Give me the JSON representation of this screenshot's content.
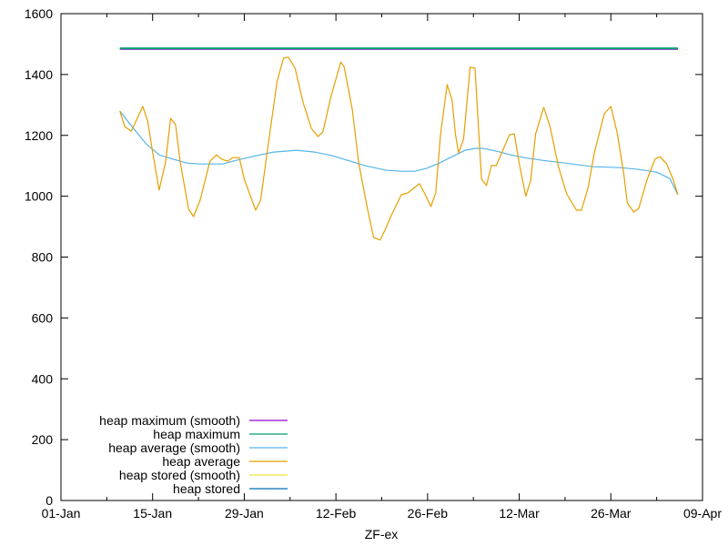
{
  "chart_data": {
    "type": "line",
    "title": "",
    "xlabel": "ZF-ex",
    "ylabel": "",
    "x_type": "date",
    "xlim": [
      "Jan 01",
      "Apr 09"
    ],
    "ylim": [
      0,
      1600
    ],
    "x_ticks": [
      "01-Jan",
      "15-Jan",
      "29-Jan",
      "12-Feb",
      "26-Feb",
      "12-Mar",
      "26-Mar",
      "09-Apr"
    ],
    "x_tick_dates": [
      "Jan 01",
      "Jan 15",
      "Jan 29",
      "Feb 12",
      "Feb 26",
      "Mar 12",
      "Mar 26",
      "Apr 09"
    ],
    "y_ticks": [
      0,
      200,
      400,
      600,
      800,
      1000,
      1200,
      1400,
      1600
    ],
    "grid": false,
    "legend_placement": "bottom-left",
    "series": [
      {
        "name": "heap maximum (smooth)",
        "color": "#9400d3",
        "points": [
          [
            "Jan 10 00:00",
            1484
          ],
          [
            "Apr 05 06:00",
            1484
          ]
        ]
      },
      {
        "name": "heap maximum",
        "color": "#009e73",
        "points": [
          [
            "Jan 10 00:00",
            1486
          ],
          [
            "Apr 05 06:00",
            1486
          ]
        ]
      },
      {
        "name": "heap average (smooth)",
        "color": "#56b4e9",
        "points": [
          [
            "Jan 10 00:00",
            1280
          ],
          [
            "Jan 11 18:00",
            1232
          ],
          [
            "Jan 14 00:00",
            1172
          ],
          [
            "Jan 16 00:00",
            1136
          ],
          [
            "Jan 18 06:00",
            1121
          ],
          [
            "Jan 20 06:00",
            1109
          ],
          [
            "Jan 22 06:00",
            1106
          ],
          [
            "Jan 25 18:00",
            1106
          ],
          [
            "Jan 27 18:00",
            1118
          ],
          [
            "Jan 30 18:00",
            1133
          ],
          [
            "Feb 02 12:00",
            1145
          ],
          [
            "Feb 06 00:00",
            1151
          ],
          [
            "Feb 08 18:00",
            1145
          ],
          [
            "Feb 11 12:00",
            1133
          ],
          [
            "Feb 14 06:00",
            1115
          ],
          [
            "Feb 16 12:00",
            1100
          ],
          [
            "Feb 19 18:00",
            1085
          ],
          [
            "Feb 22 00:00",
            1082
          ],
          [
            "Feb 24 00:00",
            1082
          ],
          [
            "Feb 25 18:00",
            1091
          ],
          [
            "Feb 27 12:00",
            1106
          ],
          [
            "Mar 01 18:00",
            1130
          ],
          [
            "Mar 03 18:00",
            1151
          ],
          [
            "Mar 05 06:00",
            1157
          ],
          [
            "Mar 06 12:00",
            1157
          ],
          [
            "Mar 08 12:00",
            1148
          ],
          [
            "Mar 10 18:00",
            1136
          ],
          [
            "Mar 12 18:00",
            1127
          ],
          [
            "Mar 15 12:00",
            1118
          ],
          [
            "Mar 19 00:00",
            1109
          ],
          [
            "Mar 23 06:00",
            1097
          ],
          [
            "Mar 27 12:00",
            1094
          ],
          [
            "Mar 30 06:00",
            1088
          ],
          [
            "Apr 02 00:00",
            1079
          ],
          [
            "Apr 04 00:00",
            1058
          ],
          [
            "Apr 05 06:00",
            1005
          ]
        ]
      },
      {
        "name": "heap average",
        "color": "#e69f00",
        "points": [
          [
            "Jan 10 00:00",
            1280
          ],
          [
            "Jan 10 18:00",
            1229
          ],
          [
            "Jan 11 18:00",
            1214
          ],
          [
            "Jan 13 12:00",
            1295
          ],
          [
            "Jan 14 06:00",
            1247
          ],
          [
            "Jan 15 00:00",
            1145
          ],
          [
            "Jan 16 00:00",
            1020
          ],
          [
            "Jan 17 00:00",
            1115
          ],
          [
            "Jan 17 18:00",
            1256
          ],
          [
            "Jan 18 12:00",
            1235
          ],
          [
            "Jan 19 06:00",
            1107
          ],
          [
            "Jan 20 12:00",
            957
          ],
          [
            "Jan 21 06:00",
            933
          ],
          [
            "Jan 22 06:00",
            987
          ],
          [
            "Jan 23 18:00",
            1115
          ],
          [
            "Jan 24 18:00",
            1136
          ],
          [
            "Jan 25 12:00",
            1122
          ],
          [
            "Jan 26 12:00",
            1115
          ],
          [
            "Jan 27 06:00",
            1127
          ],
          [
            "Jan 28 06:00",
            1127
          ],
          [
            "Jan 29 00:00",
            1056
          ],
          [
            "Jan 30 18:00",
            954
          ],
          [
            "Jan 31 12:00",
            987
          ],
          [
            "Feb 01 12:00",
            1145
          ],
          [
            "Feb 03 00:00",
            1376
          ],
          [
            "Feb 04 00:00",
            1454
          ],
          [
            "Feb 04 18:00",
            1457
          ],
          [
            "Feb 05 18:00",
            1421
          ],
          [
            "Feb 07 00:00",
            1307
          ],
          [
            "Feb 08 06:00",
            1223
          ],
          [
            "Feb 09 06:00",
            1196
          ],
          [
            "Feb 10 00:00",
            1211
          ],
          [
            "Feb 11 06:00",
            1328
          ],
          [
            "Feb 12 18:00",
            1441
          ],
          [
            "Feb 13 06:00",
            1426
          ],
          [
            "Feb 14 12:00",
            1286
          ],
          [
            "Feb 15 12:00",
            1107
          ],
          [
            "Feb 16 18:00",
            967
          ],
          [
            "Feb 17 18:00",
            865
          ],
          [
            "Feb 18 18:00",
            856
          ],
          [
            "Feb 19 12:00",
            889
          ],
          [
            "Feb 20 12:00",
            939
          ],
          [
            "Feb 22 00:00",
            1005
          ],
          [
            "Feb 23 00:00",
            1011
          ],
          [
            "Feb 24 18:00",
            1041
          ],
          [
            "Feb 25 12:00",
            1011
          ],
          [
            "Feb 26 12:00",
            966
          ],
          [
            "Feb 27 06:00",
            1011
          ],
          [
            "Feb 28 00:00",
            1205
          ],
          [
            "Mar 01 00:00",
            1367
          ],
          [
            "Mar 01 18:00",
            1316
          ],
          [
            "Mar 02 06:00",
            1205
          ],
          [
            "Mar 02 18:00",
            1142
          ],
          [
            "Mar 03 12:00",
            1187
          ],
          [
            "Mar 04 12:00",
            1424
          ],
          [
            "Mar 05 06:00",
            1421
          ],
          [
            "Mar 05 18:00",
            1235
          ],
          [
            "Mar 06 06:00",
            1056
          ],
          [
            "Mar 07 00:00",
            1035
          ],
          [
            "Mar 07 18:00",
            1101
          ],
          [
            "Mar 08 12:00",
            1101
          ],
          [
            "Mar 10 12:00",
            1202
          ],
          [
            "Mar 11 06:00",
            1205
          ],
          [
            "Mar 12 00:00",
            1107
          ],
          [
            "Mar 13 00:00",
            1000
          ],
          [
            "Mar 13 18:00",
            1053
          ],
          [
            "Mar 14 12:00",
            1205
          ],
          [
            "Mar 15 18:00",
            1292
          ],
          [
            "Mar 16 18:00",
            1226
          ],
          [
            "Mar 18 00:00",
            1097
          ],
          [
            "Mar 19 06:00",
            1008
          ],
          [
            "Mar 20 18:00",
            954
          ],
          [
            "Mar 21 12:00",
            954
          ],
          [
            "Mar 22 12:00",
            1026
          ],
          [
            "Mar 23 12:00",
            1145
          ],
          [
            "Mar 25 00:00",
            1271
          ],
          [
            "Mar 26 00:00",
            1295
          ],
          [
            "Mar 27 00:00",
            1205
          ],
          [
            "Mar 28 00:00",
            1068
          ],
          [
            "Mar 28 12:00",
            978
          ],
          [
            "Mar 29 12:00",
            948
          ],
          [
            "Mar 30 06:00",
            960
          ],
          [
            "Mar 31 12:00",
            1053
          ],
          [
            "Apr 01 18:00",
            1122
          ],
          [
            "Apr 02 12:00",
            1130
          ],
          [
            "Apr 03 12:00",
            1107
          ],
          [
            "Apr 04 12:00",
            1056
          ],
          [
            "Apr 05 06:00",
            1005
          ]
        ]
      },
      {
        "name": "heap stored (smooth)",
        "color": "#f0e442",
        "points": []
      },
      {
        "name": "heap stored",
        "color": "#0072b2",
        "points": []
      }
    ]
  }
}
